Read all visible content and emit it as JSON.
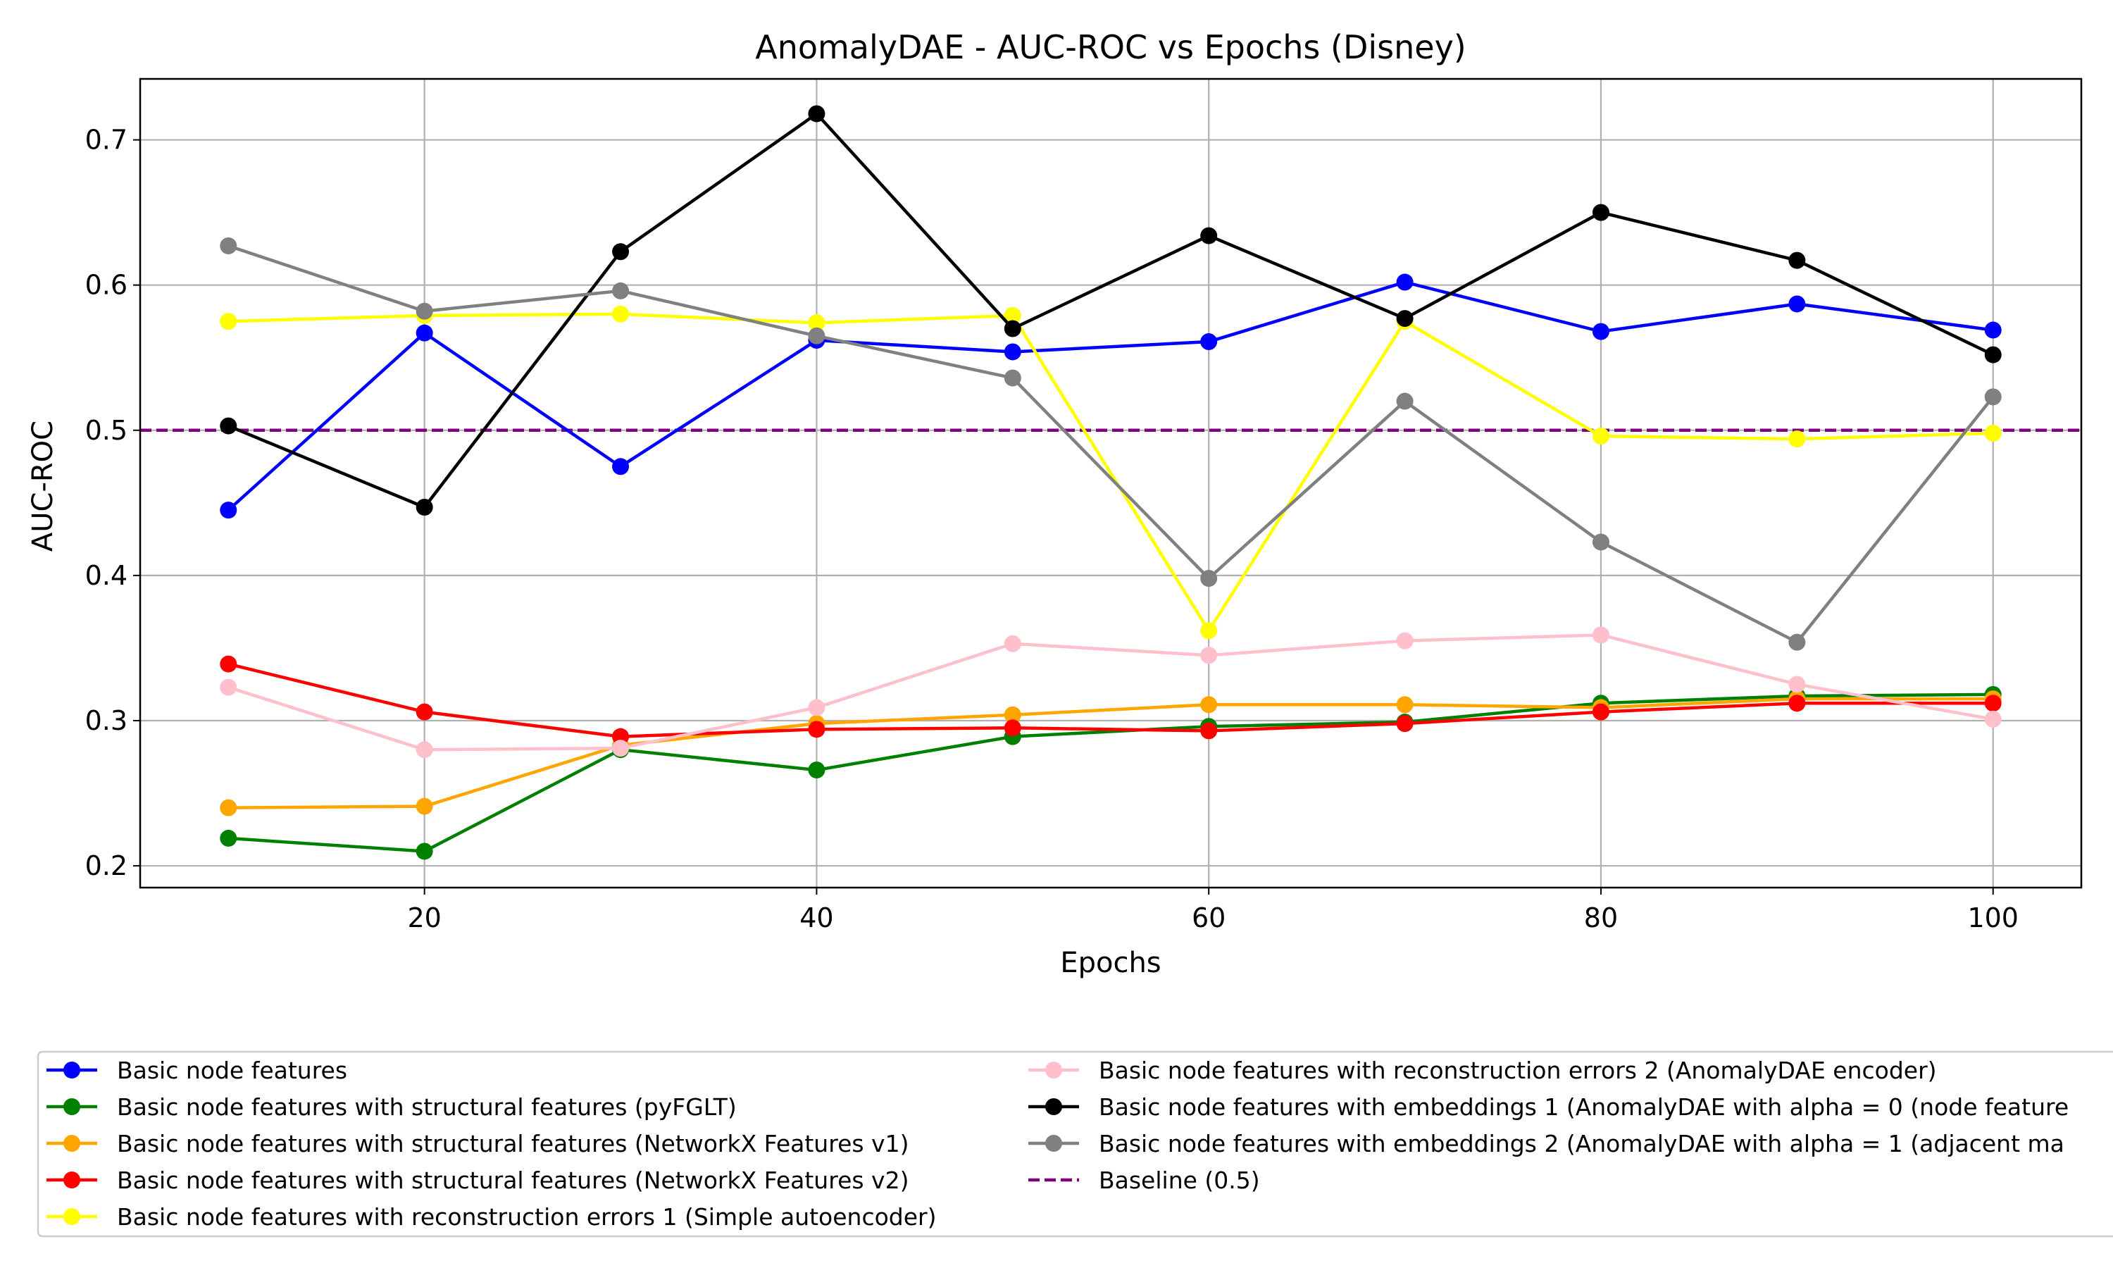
{
  "chart_data": {
    "type": "line",
    "title": "AnomalyDAE - AUC-ROC vs Epochs (Disney)",
    "xlabel": "Epochs",
    "ylabel": "AUC-ROC",
    "xlim": [
      5.5,
      104.5
    ],
    "ylim": [
      0.185,
      0.742
    ],
    "xticks": [
      20,
      40,
      60,
      80,
      100
    ],
    "yticks": [
      0.2,
      0.3,
      0.4,
      0.5,
      0.6,
      0.7
    ],
    "xtick_labels": [
      "20",
      "40",
      "60",
      "80",
      "100"
    ],
    "ytick_labels": [
      "0.2",
      "0.3",
      "0.4",
      "0.5",
      "0.6",
      "0.7"
    ],
    "grid": true,
    "legend_position": "below plot",
    "x": [
      10,
      20,
      30,
      40,
      50,
      60,
      70,
      80,
      90,
      100
    ],
    "series": [
      {
        "name": "Basic node features",
        "color": "#0000ff",
        "values": [
          0.445,
          0.567,
          0.475,
          0.562,
          0.554,
          0.561,
          0.602,
          0.568,
          0.587,
          0.569
        ]
      },
      {
        "name": "Basic node features with structural features (pyFGLT)",
        "color": "#008000",
        "values": [
          0.219,
          0.21,
          0.28,
          0.266,
          0.289,
          0.296,
          0.299,
          0.312,
          0.317,
          0.318
        ]
      },
      {
        "name": "Basic node features with structural features (NetworkX Features v1)",
        "color": "#ffa500",
        "values": [
          0.24,
          0.241,
          0.283,
          0.298,
          0.304,
          0.311,
          0.311,
          0.309,
          0.315,
          0.315
        ]
      },
      {
        "name": "Basic node features with structural features (NetworkX Features v2)",
        "color": "#ff0000",
        "values": [
          0.339,
          0.306,
          0.289,
          0.294,
          0.295,
          0.293,
          0.298,
          0.306,
          0.312,
          0.312
        ]
      },
      {
        "name": "Basic node features with reconstruction errors 1 (Simple autoencoder)",
        "color": "#ffff00",
        "values": [
          0.575,
          0.579,
          0.58,
          0.574,
          0.579,
          0.362,
          0.575,
          0.496,
          0.494,
          0.498
        ]
      },
      {
        "name": "Basic node features with reconstruction errors 2 (AnomalyDAE encoder)",
        "color": "#ffc0cb",
        "values": [
          0.323,
          0.28,
          0.281,
          0.309,
          0.353,
          0.345,
          0.355,
          0.359,
          0.325,
          0.301
        ]
      },
      {
        "name": "Basic node features with embeddings 1 (AnomalyDAE with alpha = 0 (node feature",
        "color": "#000000",
        "values": [
          0.503,
          0.447,
          0.623,
          0.718,
          0.57,
          0.634,
          0.577,
          0.65,
          0.617,
          0.552
        ]
      },
      {
        "name": "Basic node features with embeddings 2 (AnomalyDAE with alpha = 1 (adjacent ma",
        "color": "#808080",
        "values": [
          0.627,
          0.582,
          0.596,
          0.565,
          0.536,
          0.398,
          0.52,
          0.423,
          0.354,
          0.523
        ]
      }
    ],
    "baseline": {
      "name": "Baseline (0.5)",
      "value": 0.5,
      "color": "#800080",
      "style": "dashed"
    }
  }
}
